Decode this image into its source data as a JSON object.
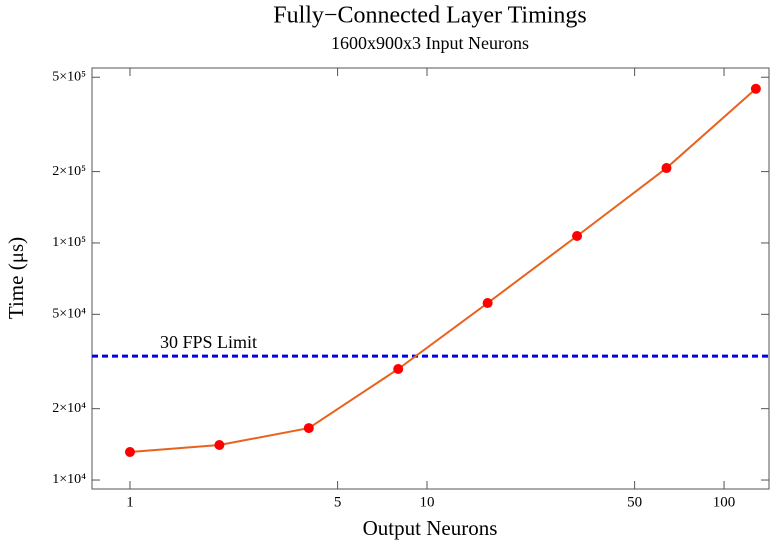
{
  "chart_data": {
    "type": "line",
    "title": "Fully−Connected Layer Timings",
    "subtitle": "1600x900x3 Input Neurons",
    "x_label": "Output Neurons",
    "y_label": "Time (μs)",
    "x": [
      1,
      2,
      4,
      8,
      16,
      32,
      64,
      128
    ],
    "values": [
      13130,
      14050,
      16560,
      29400,
      55800,
      107000,
      207000,
      447000
    ],
    "color": "#e8621e",
    "marker_color": "#ff0000",
    "log_x": true,
    "log_y": true,
    "xlim": [
      0.745,
      141.7
    ],
    "ylim": [
      9165,
      547000
    ],
    "xticks": [
      1,
      5,
      10,
      50,
      100
    ],
    "yticks": [
      {
        "value": 10000,
        "label": "1×10⁴"
      },
      {
        "value": 20000,
        "label": "2×10⁴"
      },
      {
        "value": 50000,
        "label": "5×10⁴"
      },
      {
        "value": 100000,
        "label": "1×10⁵"
      },
      {
        "value": 200000,
        "label": "2×10⁵"
      },
      {
        "value": 500000,
        "label": "5×10⁵"
      }
    ],
    "hlines": [
      {
        "value": 33333,
        "label": "30 FPS Limit",
        "color": "#0000ee"
      }
    ]
  }
}
